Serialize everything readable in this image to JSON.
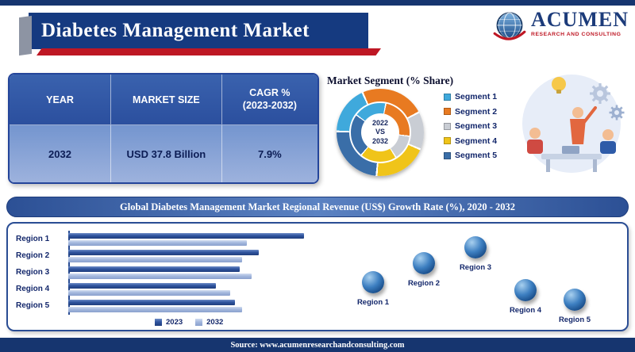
{
  "header": {
    "title": "Diabetes Management Market"
  },
  "logo": {
    "brand": "ACUMEN",
    "tagline": "RESEARCH AND CONSULTING"
  },
  "summary_table": {
    "headers": [
      "YEAR",
      "MARKET SIZE",
      "CAGR %\n(2023-2032)"
    ],
    "row": [
      "2032",
      "USD 37.8 Billion",
      "7.9%"
    ]
  },
  "segment_chart": {
    "title": "Market Segment (% Share)",
    "center_label": "2022\nVS\n2032"
  },
  "regional_banner": "Global Diabetes Management Market Regional Revenue (US$) Growth Rate (%), 2020 - 2032",
  "regions": [
    "Region 1",
    "Region 2",
    "Region 3",
    "Region 4",
    "Region 5"
  ],
  "footer": {
    "source": "Source: www.acumenresearchandconsulting.com"
  },
  "chart_data": [
    {
      "type": "pie",
      "title": "Market Segment (% Share)",
      "labels": [
        "Segment 1",
        "Segment 2",
        "Segment 3",
        "Segment 4",
        "Segment 5"
      ],
      "values": [
        18,
        24,
        14,
        20,
        24
      ],
      "colors": [
        "#3fa9dc",
        "#e87a21",
        "#c9cdd4",
        "#f0c419",
        "#3a6ea8"
      ],
      "center_label": "2022 VS 2032",
      "legend_position": "right"
    },
    {
      "type": "bar",
      "orientation": "horizontal",
      "title": "Global Diabetes Management Market Regional Revenue (US$) Growth Rate (%), 2020 - 2032",
      "categories": [
        "Region 1",
        "Region 2",
        "Region 3",
        "Region 4",
        "Region 5"
      ],
      "series": [
        {
          "name": "2023",
          "color": "#2e549f",
          "values": [
            9.9,
            8.0,
            7.2,
            6.2,
            7.0
          ]
        },
        {
          "name": "2032",
          "color": "#a4b8de",
          "values": [
            7.5,
            7.3,
            7.7,
            6.8,
            7.3
          ]
        }
      ],
      "xlim": [
        0,
        10
      ],
      "legend_position": "bottom"
    }
  ]
}
